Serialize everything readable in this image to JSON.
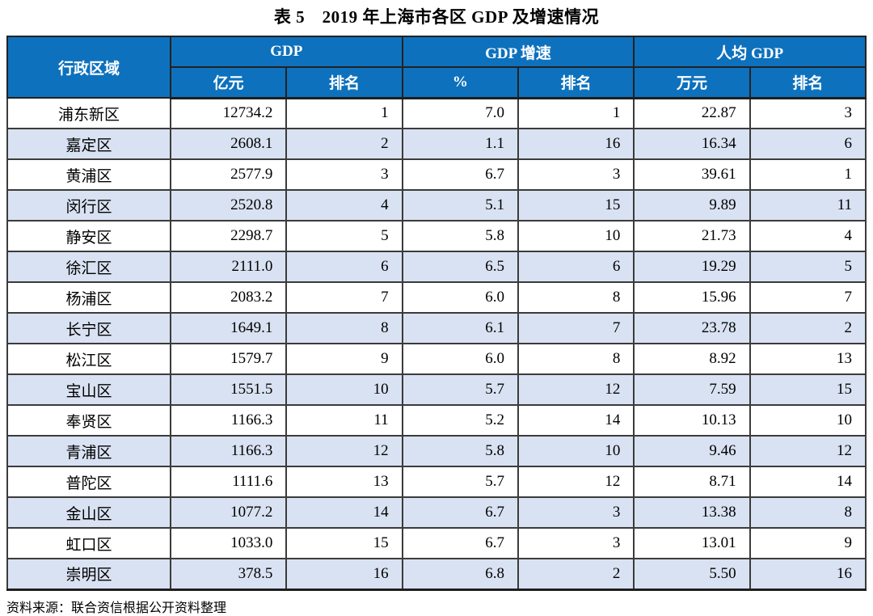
{
  "page": {
    "title": "表 5　2019 年上海市各区 GDP 及增速情况",
    "source_note": "资料来源：联合资信根据公开资料整理"
  },
  "table": {
    "region_header": "行政区域",
    "groups": [
      {
        "label": "GDP",
        "unit": "亿元",
        "rank": "排名"
      },
      {
        "label": "GDP 增速",
        "unit": "%",
        "rank": "排名"
      },
      {
        "label": "人均 GDP",
        "unit": "万元",
        "rank": "排名"
      }
    ],
    "rows": [
      [
        "浦东新区",
        "12734.2",
        "1",
        "7.0",
        "1",
        "22.87",
        "3"
      ],
      [
        "嘉定区",
        "2608.1",
        "2",
        "1.1",
        "16",
        "16.34",
        "6"
      ],
      [
        "黄浦区",
        "2577.9",
        "3",
        "6.7",
        "3",
        "39.61",
        "1"
      ],
      [
        "闵行区",
        "2520.8",
        "4",
        "5.1",
        "15",
        "9.89",
        "11"
      ],
      [
        "静安区",
        "2298.7",
        "5",
        "5.8",
        "10",
        "21.73",
        "4"
      ],
      [
        "徐汇区",
        "2111.0",
        "6",
        "6.5",
        "6",
        "19.29",
        "5"
      ],
      [
        "杨浦区",
        "2083.2",
        "7",
        "6.0",
        "8",
        "15.96",
        "7"
      ],
      [
        "长宁区",
        "1649.1",
        "8",
        "6.1",
        "7",
        "23.78",
        "2"
      ],
      [
        "松江区",
        "1579.7",
        "9",
        "6.0",
        "8",
        "8.92",
        "13"
      ],
      [
        "宝山区",
        "1551.5",
        "10",
        "5.7",
        "12",
        "7.59",
        "15"
      ],
      [
        "奉贤区",
        "1166.3",
        "11",
        "5.2",
        "14",
        "10.13",
        "10"
      ],
      [
        "青浦区",
        "1166.3",
        "12",
        "5.8",
        "10",
        "9.46",
        "12"
      ],
      [
        "普陀区",
        "1111.6",
        "13",
        "5.7",
        "12",
        "8.71",
        "14"
      ],
      [
        "金山区",
        "1077.2",
        "14",
        "6.7",
        "3",
        "13.38",
        "8"
      ],
      [
        "虹口区",
        "1033.0",
        "15",
        "6.7",
        "3",
        "13.01",
        "9"
      ],
      [
        "崇明区",
        "378.5",
        "16",
        "6.8",
        "2",
        "5.50",
        "16"
      ]
    ]
  },
  "colors": {
    "header_bg": "#0d71bd",
    "header_text": "#ffffff",
    "row_alt_bg": "#d9e2f2",
    "border": "#3b3b3b"
  }
}
